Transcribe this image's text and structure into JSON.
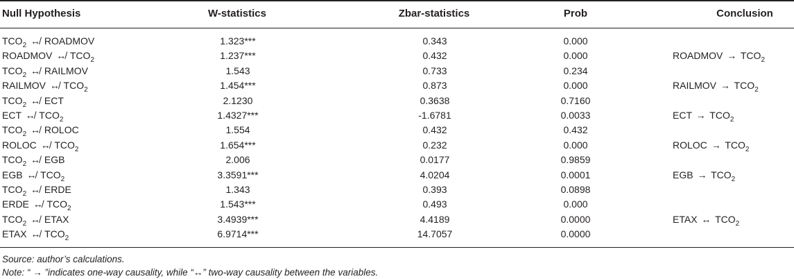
{
  "table": {
    "headers": {
      "null_hypothesis": "Null Hypothesis",
      "w_statistics": "W-statistics",
      "zbar_statistics": "Zbar-statistics",
      "prob": "Prob",
      "conclusion": "Conclusion"
    },
    "rows": [
      {
        "from": "TCO",
        "from_sub": "2",
        "rel": "↮",
        "to": "ROADMOV",
        "to_sub": "",
        "w": "1.323***",
        "z": "0.343",
        "p": "0.000",
        "c_from": "",
        "c_from_sub": "",
        "c_rel": "",
        "c_to": "",
        "c_to_sub": ""
      },
      {
        "from": "ROADMOV",
        "from_sub": "",
        "rel": "↮",
        "to": "TCO",
        "to_sub": "2",
        "w": "1.237***",
        "z": "0.432",
        "p": "0.000",
        "c_from": "ROADMOV",
        "c_from_sub": "",
        "c_rel": "→",
        "c_to": "TCO",
        "c_to_sub": "2"
      },
      {
        "from": "TCO",
        "from_sub": "2",
        "rel": "↮",
        "to": "RAILMOV",
        "to_sub": "",
        "w": "1.543",
        "z": "0.733",
        "p": "0.234",
        "c_from": "",
        "c_from_sub": "",
        "c_rel": "",
        "c_to": "",
        "c_to_sub": ""
      },
      {
        "from": "RAILMOV",
        "from_sub": "",
        "rel": "↮",
        "to": "TCO",
        "to_sub": "2",
        "w": "1.454***",
        "z": "0.873",
        "p": "0.000",
        "c_from": "RAILMOV",
        "c_from_sub": "",
        "c_rel": "→",
        "c_to": "TCO",
        "c_to_sub": "2"
      },
      {
        "from": "TCO",
        "from_sub": "2",
        "rel": "↮",
        "to": "ECT",
        "to_sub": "",
        "w": "2.1230",
        "z": "0.3638",
        "p": "0.7160",
        "c_from": "",
        "c_from_sub": "",
        "c_rel": "",
        "c_to": "",
        "c_to_sub": ""
      },
      {
        "from": "ECT",
        "from_sub": "",
        "rel": "↮",
        "to": "TCO",
        "to_sub": "2",
        "w": "1.4327***",
        "z": "-1.6781",
        "p": "0.0033",
        "c_from": "ECT",
        "c_from_sub": "",
        "c_rel": "→",
        "c_to": "TCO",
        "c_to_sub": "2"
      },
      {
        "from": "TCO",
        "from_sub": "2",
        "rel": "↮",
        "to": "ROLOC",
        "to_sub": "",
        "w": "1.554",
        "z": "0.432",
        "p": "0.432",
        "c_from": "",
        "c_from_sub": "",
        "c_rel": "",
        "c_to": "",
        "c_to_sub": ""
      },
      {
        "from": "ROLOC",
        "from_sub": "",
        "rel": "↮",
        "to": "TCO",
        "to_sub": "2",
        "w": "1.654***",
        "z": "0.232",
        "p": "0.000",
        "c_from": "ROLOC",
        "c_from_sub": "",
        "c_rel": "→",
        "c_to": "TCO",
        "c_to_sub": "2"
      },
      {
        "from": "TCO",
        "from_sub": "2",
        "rel": "↮",
        "to": "EGB",
        "to_sub": "",
        "w": "2.006",
        "z": "0.0177",
        "p": "0.9859",
        "c_from": "",
        "c_from_sub": "",
        "c_rel": "",
        "c_to": "",
        "c_to_sub": ""
      },
      {
        "from": "EGB",
        "from_sub": "",
        "rel": "↮",
        "to": "TCO",
        "to_sub": "2",
        "w": "3.3591***",
        "z": "4.0204",
        "p": "0.0001",
        "c_from": "EGB",
        "c_from_sub": "",
        "c_rel": "→",
        "c_to": "TCO",
        "c_to_sub": "2"
      },
      {
        "from": "TCO",
        "from_sub": "2",
        "rel": "↮",
        "to": "ERDE",
        "to_sub": "",
        "w": "1.343",
        "z": "0.393",
        "p": "0.0898",
        "c_from": "",
        "c_from_sub": "",
        "c_rel": "",
        "c_to": "",
        "c_to_sub": ""
      },
      {
        "from": "ERDE",
        "from_sub": "",
        "rel": "↮",
        "to": "TCO",
        "to_sub": "2",
        "w": "1.543***",
        "z": "0.493",
        "p": "0.000",
        "c_from": "",
        "c_from_sub": "",
        "c_rel": "",
        "c_to": "",
        "c_to_sub": ""
      },
      {
        "from": "TCO",
        "from_sub": "2",
        "rel": "↮",
        "to": "ETAX",
        "to_sub": "",
        "w": "3.4939***",
        "z": "4.4189",
        "p": "0.0000",
        "c_from": "ETAX",
        "c_from_sub": "",
        "c_rel": "↔",
        "c_to": "TCO",
        "c_to_sub": "2"
      },
      {
        "from": "ETAX",
        "from_sub": "",
        "rel": "↮",
        "to": "TCO",
        "to_sub": "2",
        "w": "6.9714***",
        "z": "14.7057",
        "p": "0.0000",
        "c_from": "",
        "c_from_sub": "",
        "c_rel": "",
        "c_to": "",
        "c_to_sub": ""
      }
    ]
  },
  "notes": {
    "source": "Source: author’s calculations.",
    "note": "Note: “ → ”indicates one-way causality, while “↔” two-way causality between the variables."
  }
}
